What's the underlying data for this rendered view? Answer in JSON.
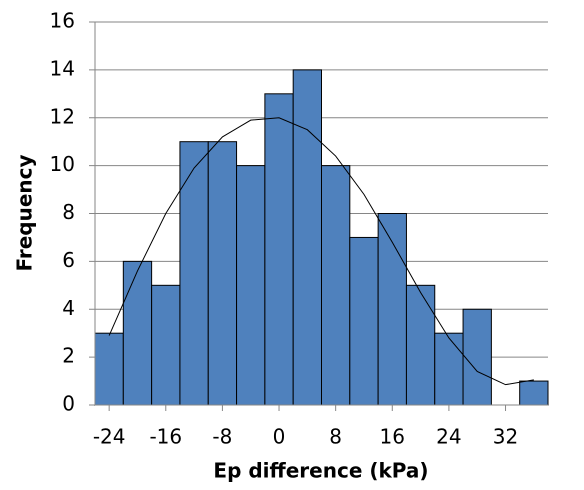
{
  "chart_data": {
    "type": "histogram",
    "x_label": "Ep difference (kPa)",
    "y_label": "Frequency",
    "bins": [
      -26,
      -22,
      -18,
      -14,
      -10,
      -6,
      -2,
      2,
      6,
      10,
      14,
      18,
      22,
      26,
      30,
      34,
      38
    ],
    "values": [
      3,
      6,
      5,
      11,
      11,
      10,
      13,
      14,
      10,
      7,
      8,
      5,
      3,
      4,
      0,
      1
    ],
    "color": "#4f81bd",
    "fit": {
      "x": [
        -24,
        -20,
        -16,
        -12,
        -8,
        -4,
        0,
        4,
        8,
        12,
        16,
        20,
        24,
        28,
        32,
        36
      ],
      "y": [
        2.9,
        5.6,
        8.0,
        9.9,
        11.2,
        11.9,
        12.0,
        11.5,
        10.4,
        8.8,
        6.8,
        4.7,
        2.8,
        1.4,
        0.85,
        1.05
      ],
      "color": "#000000"
    },
    "xlim": [
      -26,
      38
    ],
    "ylim": [
      0,
      16
    ],
    "xticks": [
      -24,
      -16,
      -8,
      0,
      8,
      16,
      24,
      32
    ],
    "yticks": [
      0,
      2,
      4,
      6,
      8,
      10,
      12,
      14,
      16
    ],
    "grid": true
  }
}
